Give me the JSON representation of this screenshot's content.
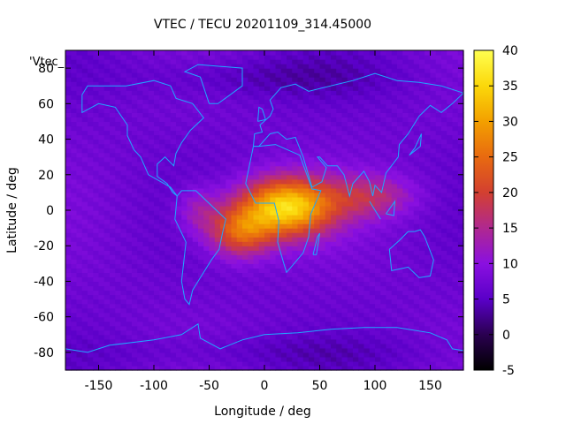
{
  "chart_data": {
    "type": "heatmap",
    "title": "VTEC / TECU 20201109_314.45000",
    "xlabel": "Longitude / deg",
    "ylabel": "Latitude / deg",
    "series_label": "'Vtec_",
    "xlim": [
      -180,
      180
    ],
    "ylim": [
      -90,
      90
    ],
    "xticks": [
      -150,
      -100,
      -50,
      0,
      50,
      100,
      150
    ],
    "yticks": [
      -80,
      -60,
      -40,
      -20,
      0,
      20,
      40,
      60,
      80
    ],
    "colorbar": {
      "range": [
        -5,
        40
      ],
      "ticks": [
        -5,
        0,
        5,
        10,
        15,
        20,
        25,
        30,
        35,
        40
      ],
      "palette": [
        "#000000",
        "#2a0050",
        "#5a00c8",
        "#8a10e0",
        "#b02890",
        "#d34030",
        "#e86a10",
        "#f3a000",
        "#fbd80a",
        "#ffff50"
      ]
    },
    "field": {
      "background_tecu": 7,
      "note_features": [
        {
          "lon": 25,
          "lat": 0,
          "peak_tecu": 40
        },
        {
          "lon": -30,
          "lat": -15,
          "peak_tecu": 30
        }
      ]
    },
    "grid_resolution_deg": {
      "lon": 5,
      "lat": 2.5
    }
  }
}
